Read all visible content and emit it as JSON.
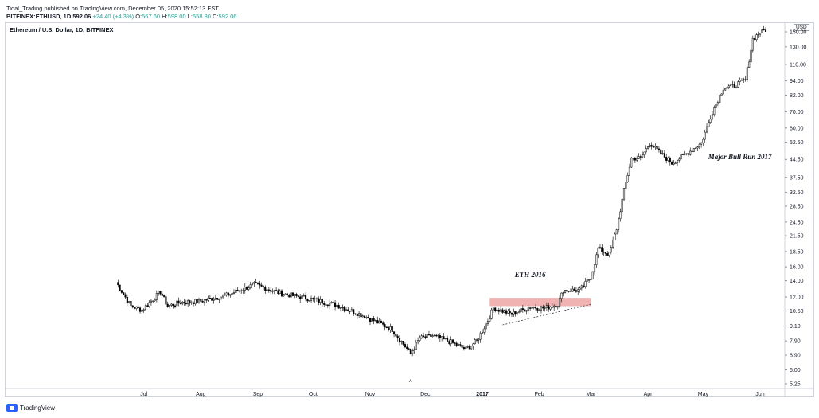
{
  "header": {
    "line1": "Tidal_Trading published on TradingView.com, December 05, 2020 15:52:13 EST",
    "symbol": "BITFINEX:ETHUSD, 1D",
    "price": "592.06",
    "change": "+24.40 (+4.3%)",
    "o_label": "O:",
    "o_val": "567.60",
    "h_label": "H:",
    "h_val": "598.00",
    "l_label": "L:",
    "l_val": "558.80",
    "c_label": "C:",
    "c_val": "592.06"
  },
  "chart_title": "Ethereum / U.S. Dollar, 1D, BITFINEX",
  "usd_label": "USD",
  "footer": {
    "brand": "TradingView"
  },
  "colors": {
    "up": "#26a69a",
    "candle": "#000000",
    "zone": "#e57373",
    "axis_text": "#131722"
  },
  "chart_data": {
    "type": "candlestick",
    "y_scale": "log",
    "y_ticks": [
      "5.25",
      "6.00",
      "6.90",
      "7.90",
      "9.10",
      "10.50",
      "12.00",
      "14.00",
      "16.00",
      "18.50",
      "21.50",
      "24.50",
      "28.50",
      "32.50",
      "37.50",
      "44.50",
      "52.50",
      "60.00",
      "70.00",
      "82.00",
      "94.00",
      "110.00",
      "130.00",
      "150.00"
    ],
    "x_ticks": [
      "Jul",
      "Aug",
      "Sep",
      "Oct",
      "Nov",
      "Dec",
      "2017",
      "Feb",
      "Mar",
      "Apr",
      "May",
      "Jun"
    ],
    "x_tick_days": [
      15,
      46,
      77,
      107,
      138,
      168,
      199,
      230,
      258,
      289,
      319,
      350
    ],
    "annotations": [
      {
        "text": "ETH 2016",
        "x_day": 225,
        "y": 14.5
      },
      {
        "text": "Major Bull Run 2017",
        "x_day": 339,
        "y": 44.5
      }
    ],
    "zone": {
      "x_start_day": 203,
      "x_end_day": 258,
      "y_low": 11.0,
      "y_high": 11.9
    },
    "trendline": {
      "from": {
        "day": 210,
        "y": 9.2
      },
      "to": {
        "day": 258,
        "y": 11.2
      }
    },
    "key_points": [
      {
        "day": 0,
        "close": 13.8
      },
      {
        "day": 8,
        "close": 11.0
      },
      {
        "day": 14,
        "close": 10.6
      },
      {
        "day": 24,
        "close": 12.6
      },
      {
        "day": 28,
        "close": 11.0
      },
      {
        "day": 35,
        "close": 11.4
      },
      {
        "day": 45,
        "close": 11.5
      },
      {
        "day": 60,
        "close": 12.2
      },
      {
        "day": 75,
        "close": 13.5
      },
      {
        "day": 90,
        "close": 12.4
      },
      {
        "day": 105,
        "close": 11.8
      },
      {
        "day": 120,
        "close": 11.1
      },
      {
        "day": 135,
        "close": 10.0
      },
      {
        "day": 150,
        "close": 8.8
      },
      {
        "day": 160,
        "close": 7.0
      },
      {
        "day": 165,
        "close": 8.1
      },
      {
        "day": 172,
        "close": 8.3
      },
      {
        "day": 182,
        "close": 7.8
      },
      {
        "day": 190,
        "close": 7.3
      },
      {
        "day": 196,
        "close": 7.9
      },
      {
        "day": 202,
        "close": 9.6
      },
      {
        "day": 205,
        "close": 10.8
      },
      {
        "day": 215,
        "close": 10.2
      },
      {
        "day": 225,
        "close": 10.9
      },
      {
        "day": 233,
        "close": 10.8
      },
      {
        "day": 240,
        "close": 11.2
      },
      {
        "day": 243,
        "close": 12.8
      },
      {
        "day": 252,
        "close": 12.8
      },
      {
        "day": 258,
        "close": 14.5
      },
      {
        "day": 262,
        "close": 19.0
      },
      {
        "day": 268,
        "close": 18.0
      },
      {
        "day": 272,
        "close": 23.0
      },
      {
        "day": 276,
        "close": 33.0
      },
      {
        "day": 280,
        "close": 45.0
      },
      {
        "day": 285,
        "close": 45.0
      },
      {
        "day": 290,
        "close": 52.0
      },
      {
        "day": 296,
        "close": 47.0
      },
      {
        "day": 302,
        "close": 43.0
      },
      {
        "day": 310,
        "close": 47.0
      },
      {
        "day": 318,
        "close": 52.0
      },
      {
        "day": 324,
        "close": 70.0
      },
      {
        "day": 330,
        "close": 88.0
      },
      {
        "day": 336,
        "close": 90.0
      },
      {
        "day": 342,
        "close": 95.0
      },
      {
        "day": 346,
        "close": 140.0
      },
      {
        "day": 350,
        "close": 150.0
      },
      {
        "day": 353,
        "close": 153.0
      }
    ]
  }
}
